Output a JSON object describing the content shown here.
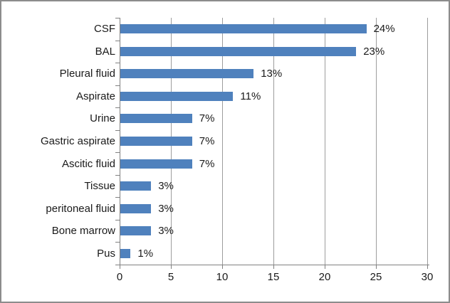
{
  "chart_data": {
    "type": "bar",
    "orientation": "horizontal",
    "title": "",
    "xlabel": "",
    "ylabel": "",
    "categories": [
      "CSF",
      "BAL",
      "Pleural fluid",
      "Aspirate",
      "Urine",
      "Gastric aspirate",
      "Ascitic fluid",
      "Tissue",
      "peritoneal fluid",
      "Bone marrow",
      "Pus"
    ],
    "values": [
      24,
      23,
      13,
      11,
      7,
      7,
      7,
      3,
      3,
      3,
      1
    ],
    "data_labels": [
      "24%",
      "23%",
      "13%",
      "11%",
      "7%",
      "7%",
      "7%",
      "3%",
      "3%",
      "3%",
      "1%"
    ],
    "xlim": [
      0,
      30
    ],
    "x_ticks": [
      0,
      5,
      10,
      15,
      20,
      25,
      30
    ],
    "grid": true,
    "legend": "none",
    "colors": {
      "bar": "#4f81bd",
      "gridline": "#9d9d9d",
      "axis": "#808080",
      "text": "#1a1a1a",
      "frame_border": "#8c8c8c",
      "background": "#ffffff"
    }
  }
}
